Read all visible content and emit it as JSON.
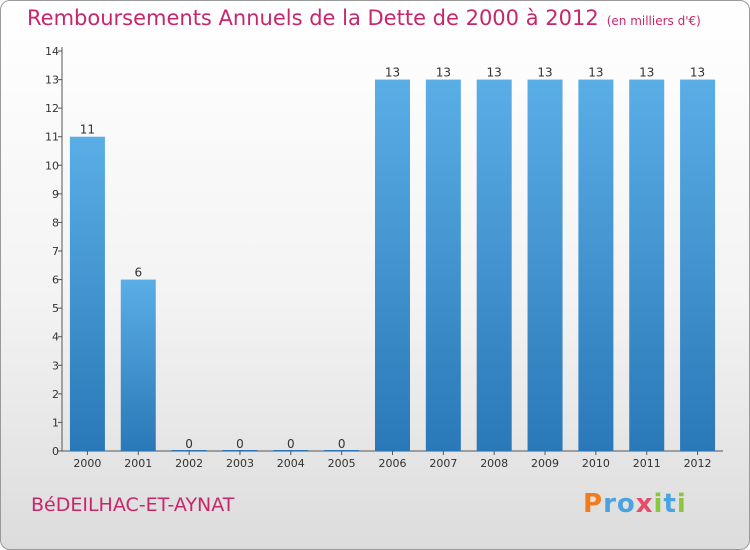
{
  "header": {
    "title": "Remboursements Annuels de la Dette de 2000 à 2012",
    "unit": "(en milliers d'€)"
  },
  "footer": {
    "commune": "BéDEILHAC-ET-AYNAT",
    "logo_letters": [
      "P",
      "r",
      "o",
      "x",
      "i",
      "t",
      "i"
    ],
    "logo_colors": [
      "#f07c1e",
      "#4aa3df",
      "#4aa3df",
      "#e84a6b",
      "#8cc63f",
      "#4aa3df",
      "#8cc63f"
    ]
  },
  "colors": {
    "bar_light": "#5aaee6",
    "bar_dark": "#2a78b8",
    "title": "#c8266c"
  },
  "chart_data": {
    "type": "bar",
    "categories": [
      "2000",
      "2001",
      "2002",
      "2003",
      "2004",
      "2005",
      "2006",
      "2007",
      "2008",
      "2009",
      "2010",
      "2011",
      "2012"
    ],
    "values": [
      11,
      6,
      0,
      0,
      0,
      0,
      13,
      13,
      13,
      13,
      13,
      13,
      13
    ],
    "data_labels": [
      "11",
      "6",
      "0",
      "0",
      "0",
      "0",
      "13",
      "13",
      "13",
      "13",
      "13",
      "13",
      "13"
    ],
    "y_ticks": [
      0,
      1,
      2,
      3,
      4,
      5,
      6,
      7,
      8,
      9,
      10,
      11,
      12,
      13,
      14
    ],
    "ylim": [
      0,
      14
    ],
    "grid": false,
    "legend": "none"
  }
}
